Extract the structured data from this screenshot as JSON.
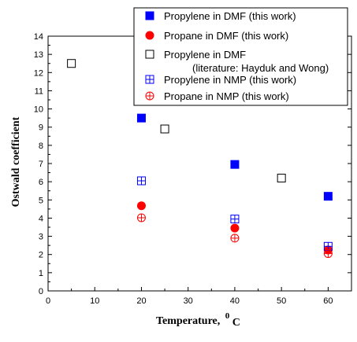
{
  "chart_data": {
    "type": "scatter",
    "xlabel": "Temperature,",
    "xlabel_unit_sup": "0",
    "xlabel_unit": "C",
    "ylabel": "Ostwald coefficient",
    "xlim": [
      0,
      65
    ],
    "ylim": [
      0,
      14
    ],
    "xticks": [
      0,
      10,
      20,
      30,
      40,
      50,
      60
    ],
    "yticks": [
      0,
      1,
      2,
      3,
      4,
      5,
      6,
      7,
      8,
      9,
      10,
      11,
      12,
      13,
      14
    ],
    "grid": false,
    "legend_position": "top-right",
    "series": [
      {
        "name": "Propylene in DMF (this work)",
        "marker": "filled-square",
        "color": "#0000ff",
        "x": [
          20,
          40,
          60
        ],
        "y": [
          9.5,
          6.95,
          5.2
        ]
      },
      {
        "name": "Propane in DMF (this work)",
        "marker": "filled-circle",
        "color": "#ff0000",
        "x": [
          20,
          40,
          60
        ],
        "y": [
          4.68,
          3.45,
          2.25
        ]
      },
      {
        "name": "Propylene in DMF",
        "name_line2": "(literature: Hayduk and Wong)",
        "marker": "open-square",
        "color": "#000000",
        "x": [
          5,
          25,
          50
        ],
        "y": [
          12.5,
          8.9,
          6.2
        ]
      },
      {
        "name": "Propylene in NMP (this work)",
        "marker": "crossed-square",
        "color": "#0000ff",
        "x": [
          20,
          40,
          60
        ],
        "y": [
          6.05,
          3.95,
          2.45
        ]
      },
      {
        "name": "Propane in NMP (this work)",
        "marker": "crossed-circle",
        "color": "#ff0000",
        "x": [
          20,
          40,
          60
        ],
        "y": [
          4.02,
          2.9,
          2.05
        ]
      }
    ]
  }
}
